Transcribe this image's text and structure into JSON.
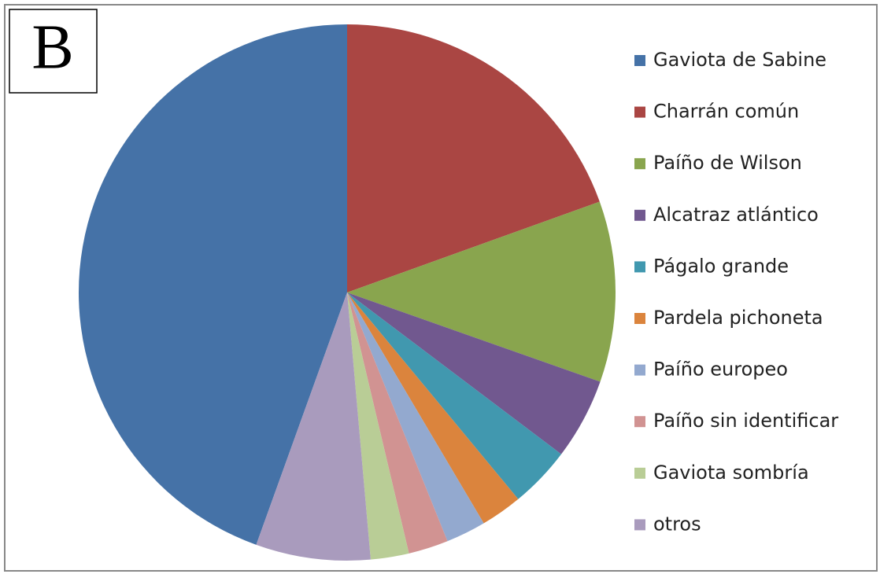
{
  "chart_data": {
    "type": "pie",
    "annotation": "B",
    "categories": [
      "Gaviota de Sabine",
      "Charrán común",
      "Paíño de Wilson",
      "Alcatraz atlántico",
      "Págalo grande",
      "Pardela pichoneta",
      "Paíño europeo",
      "Paíño sin identificar",
      "Gaviota sombría",
      "otros"
    ],
    "values": [
      44.5,
      19.5,
      10.9,
      4.9,
      3.7,
      2.5,
      2.4,
      2.4,
      2.3,
      6.9
    ],
    "colors": [
      "#4572a7",
      "#aa4643",
      "#89a54e",
      "#71588f",
      "#4198af",
      "#db843d",
      "#93a9cf",
      "#d19392",
      "#b9cd96",
      "#a99bbd"
    ],
    "legend": "right"
  }
}
